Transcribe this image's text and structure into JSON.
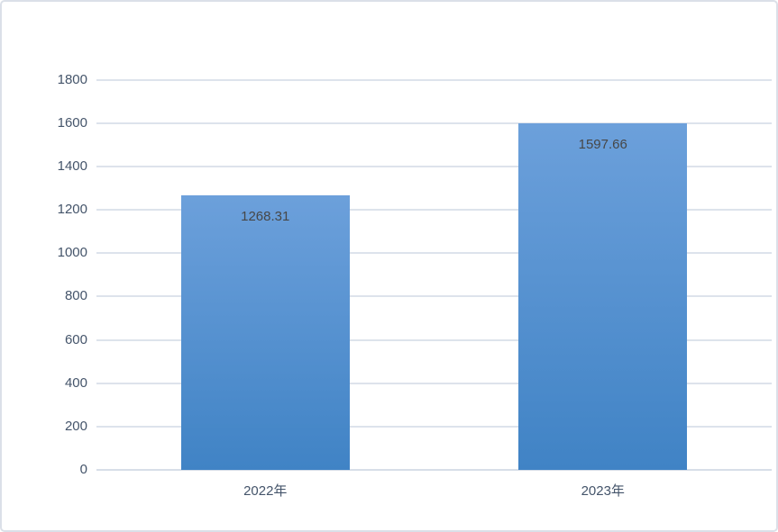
{
  "chart_data": {
    "type": "bar",
    "title": "",
    "xlabel": "",
    "ylabel": "",
    "categories": [
      "2022年",
      "2023年"
    ],
    "values": [
      1268.31,
      1597.66
    ],
    "value_labels": [
      "1268.31",
      "1597.66"
    ],
    "ylim": [
      0,
      1800
    ],
    "ytick_interval": 200,
    "yticks": [
      0,
      200,
      400,
      600,
      800,
      1000,
      1200,
      1400,
      1600,
      1800
    ],
    "grid": "horizontal-only",
    "legend_position": "none",
    "colors": {
      "bar_gradient_top": "#6CA0DB",
      "bar_gradient_bottom": "#4083C5",
      "gridline": "#dde3ec",
      "axis_line": "#d7dee8",
      "axis_label_text": "#44546a",
      "data_label_text": "#474747",
      "frame_border": "#dbe0e8",
      "background": "#ffffff"
    }
  }
}
